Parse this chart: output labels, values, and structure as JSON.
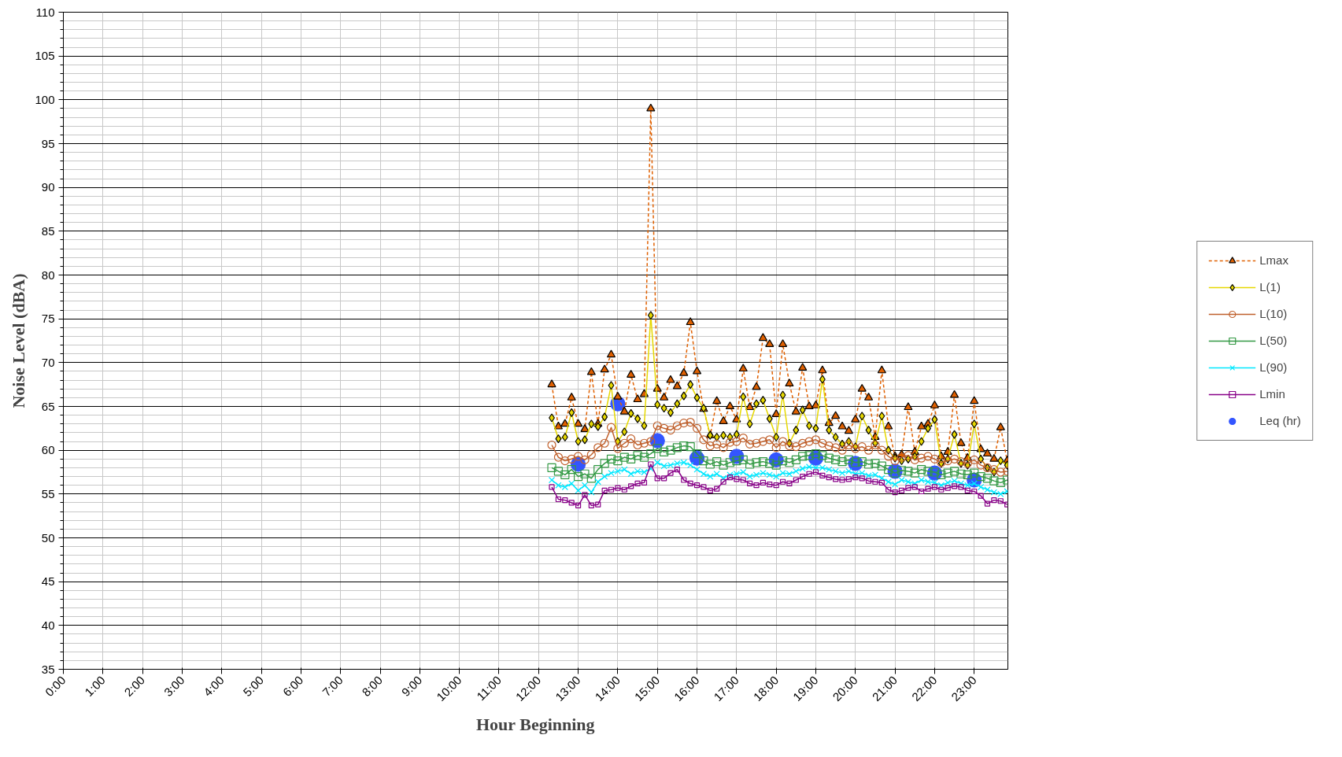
{
  "chart_data": {
    "type": "line",
    "xlabel": "Hour Beginning",
    "ylabel": "Noise Level (dBA)",
    "x": [
      12.333,
      12.5,
      12.667,
      12.833,
      13,
      13.167,
      13.333,
      13.5,
      13.667,
      13.833,
      14,
      14.167,
      14.333,
      14.5,
      14.667,
      14.833,
      15,
      15.167,
      15.333,
      15.5,
      15.667,
      15.833,
      16,
      16.167,
      16.333,
      16.5,
      16.667,
      16.833,
      17,
      17.167,
      17.333,
      17.5,
      17.667,
      17.833,
      18,
      18.167,
      18.333,
      18.5,
      18.667,
      18.833,
      19,
      19.167,
      19.333,
      19.5,
      19.667,
      19.833,
      20,
      20.167,
      20.333,
      20.5,
      20.667,
      20.833,
      21,
      21.167,
      21.333,
      21.5,
      21.667,
      21.833,
      22,
      22.167,
      22.333,
      22.5,
      22.667,
      22.833,
      23,
      23.167,
      23.333,
      23.5,
      23.667,
      23.833
    ],
    "series": [
      {
        "name": "Lmax",
        "color": "#e06000",
        "marker": "triangle",
        "line_style": "dashed",
        "values": [
          67.5,
          62.7,
          63.0,
          66.0,
          63.0,
          62.4,
          68.9,
          63.0,
          69.2,
          70.9,
          66.1,
          64.4,
          68.6,
          65.8,
          66.4,
          99.0,
          67.0,
          66.0,
          68.0,
          67.3,
          68.8,
          74.6,
          69.0,
          64.7,
          61.7,
          65.6,
          63.3,
          65.0,
          63.5,
          69.3,
          64.9,
          67.2,
          72.8,
          72.1,
          64.1,
          72.1,
          67.6,
          64.4,
          69.4,
          65.0,
          65.1,
          69.1,
          63.1,
          63.9,
          62.7,
          62.2,
          63.5,
          67.0,
          66.0,
          61.5,
          69.1,
          62.7,
          59.3,
          59.5,
          64.9,
          59.8,
          62.7,
          63.0,
          65.1,
          59.3,
          59.8,
          66.3,
          60.8,
          59.1,
          65.6,
          60.1,
          59.6,
          59.0,
          62.6,
          58.8
        ]
      },
      {
        "name": "L(1)",
        "color": "#e6d800",
        "marker": "diamond",
        "line_style": "solid",
        "values": [
          63.7,
          61.3,
          61.5,
          64.3,
          61.0,
          61.2,
          63.0,
          62.7,
          63.8,
          67.4,
          61.0,
          62.1,
          64.2,
          63.6,
          62.8,
          75.4,
          65.2,
          64.8,
          64.3,
          65.3,
          66.2,
          67.5,
          66.0,
          64.8,
          61.7,
          61.5,
          61.7,
          61.5,
          61.8,
          66.1,
          63.0,
          65.3,
          65.7,
          63.6,
          61.5,
          66.3,
          60.8,
          62.3,
          64.6,
          62.8,
          62.5,
          68.1,
          62.3,
          61.5,
          60.7,
          61.0,
          60.4,
          63.9,
          62.3,
          60.8,
          63.9,
          60.0,
          59.1,
          58.8,
          59.0,
          59.3,
          61.0,
          62.5,
          63.5,
          58.5,
          59.0,
          61.8,
          58.5,
          58.3,
          63.0,
          59.0,
          58.0,
          57.5,
          58.8,
          58.3
        ]
      },
      {
        "name": "L(10)",
        "color": "#c0602c",
        "marker": "circle",
        "line_style": "solid",
        "values": [
          60.6,
          59.2,
          58.8,
          59.0,
          59.3,
          58.9,
          59.5,
          60.3,
          60.8,
          62.6,
          60.2,
          60.8,
          61.3,
          60.6,
          60.8,
          61.0,
          62.8,
          62.5,
          62.3,
          62.8,
          63.1,
          63.2,
          62.5,
          61.2,
          60.5,
          60.7,
          60.3,
          60.9,
          61.0,
          61.4,
          60.7,
          60.8,
          61.0,
          61.2,
          60.3,
          61.0,
          60.5,
          60.4,
          60.8,
          61.0,
          61.2,
          60.8,
          60.5,
          60.3,
          60.0,
          60.6,
          60.2,
          60.4,
          60.0,
          60.6,
          60.0,
          59.3,
          58.8,
          59.2,
          59.4,
          58.9,
          59.1,
          59.3,
          59.0,
          58.6,
          58.8,
          59.0,
          58.7,
          58.5,
          58.9,
          58.3,
          58.0,
          57.8,
          57.5,
          57.6
        ]
      },
      {
        "name": "L(50)",
        "color": "#339944",
        "marker": "square",
        "line_style": "solid",
        "values": [
          58.0,
          57.6,
          57.2,
          57.8,
          57.0,
          57.3,
          56.8,
          57.8,
          58.5,
          59.0,
          58.8,
          59.2,
          59.0,
          59.4,
          59.2,
          59.6,
          60.2,
          59.8,
          60.0,
          60.3,
          60.5,
          60.4,
          59.6,
          58.8,
          58.4,
          58.7,
          58.3,
          58.6,
          58.8,
          58.9,
          58.4,
          58.6,
          58.7,
          58.5,
          58.3,
          58.8,
          58.6,
          58.9,
          59.3,
          59.4,
          59.6,
          59.4,
          59.1,
          58.9,
          58.7,
          58.9,
          58.6,
          58.7,
          58.4,
          58.5,
          58.2,
          57.8,
          57.4,
          57.7,
          57.6,
          57.4,
          57.8,
          57.6,
          57.5,
          57.2,
          57.4,
          57.6,
          57.3,
          57.2,
          57.4,
          57.0,
          56.8,
          56.5,
          56.3,
          56.6
        ]
      },
      {
        "name": "L(90)",
        "color": "#00e8ff",
        "marker": "cross",
        "line_style": "solid",
        "values": [
          56.6,
          56.0,
          55.8,
          56.2,
          55.4,
          56.0,
          55.2,
          56.4,
          57.0,
          57.4,
          57.6,
          57.8,
          57.3,
          57.6,
          57.5,
          57.9,
          58.6,
          58.2,
          58.3,
          58.5,
          58.6,
          58.3,
          57.8,
          57.3,
          57.0,
          57.3,
          56.8,
          57.2,
          57.3,
          57.5,
          57.0,
          57.2,
          57.4,
          57.2,
          57.0,
          57.4,
          57.3,
          57.6,
          57.9,
          58.1,
          58.0,
          58.0,
          57.8,
          57.6,
          57.4,
          57.6,
          57.3,
          57.4,
          57.1,
          57.2,
          56.8,
          56.4,
          56.1,
          56.6,
          56.4,
          56.2,
          56.6,
          56.4,
          56.3,
          56.0,
          56.3,
          56.5,
          56.2,
          56.0,
          56.2,
          55.8,
          55.5,
          55.2,
          55.0,
          55.3
        ]
      },
      {
        "name": "Lmin",
        "color": "#880088",
        "marker": "square",
        "line_style": "solid",
        "values": [
          55.8,
          54.4,
          54.3,
          54.0,
          53.7,
          54.9,
          53.7,
          53.8,
          55.4,
          55.5,
          55.7,
          55.5,
          55.9,
          56.2,
          56.3,
          58.4,
          56.8,
          56.8,
          57.4,
          57.8,
          56.6,
          56.2,
          56.0,
          55.8,
          55.4,
          55.6,
          56.4,
          56.9,
          56.7,
          56.6,
          56.2,
          56.0,
          56.3,
          56.1,
          56.0,
          56.4,
          56.2,
          56.6,
          57.0,
          57.3,
          57.5,
          57.1,
          56.9,
          56.7,
          56.6,
          56.7,
          56.9,
          56.8,
          56.5,
          56.4,
          56.3,
          55.5,
          55.2,
          55.4,
          55.7,
          55.8,
          55.3,
          55.6,
          55.8,
          55.5,
          55.7,
          55.9,
          55.8,
          55.4,
          55.3,
          54.8,
          53.9,
          54.3,
          54.2,
          53.8
        ]
      },
      {
        "name": "Leq (hr)",
        "type": "scatter",
        "color": "#3355ff",
        "marker": "circle",
        "x": [
          13,
          14,
          15,
          16,
          17,
          18,
          19,
          20,
          21,
          22,
          23
        ],
        "values": [
          58.4,
          65.3,
          61.1,
          59.1,
          59.3,
          58.9,
          59.1,
          58.5,
          57.6,
          57.4,
          56.6
        ]
      }
    ],
    "xlim": [
      0,
      23.85
    ],
    "xticks": [
      {
        "value": 0,
        "label": "0:00"
      },
      {
        "value": 1,
        "label": "1:00"
      },
      {
        "value": 2,
        "label": "2:00"
      },
      {
        "value": 3,
        "label": "3:00"
      },
      {
        "value": 4,
        "label": "4:00"
      },
      {
        "value": 5,
        "label": "5:00"
      },
      {
        "value": 6,
        "label": "6:00"
      },
      {
        "value": 7,
        "label": "7:00"
      },
      {
        "value": 8,
        "label": "8:00"
      },
      {
        "value": 9,
        "label": "9:00"
      },
      {
        "value": 10,
        "label": "10:00"
      },
      {
        "value": 11,
        "label": "11:00"
      },
      {
        "value": 12,
        "label": "12:00"
      },
      {
        "value": 13,
        "label": "13:00"
      },
      {
        "value": 14,
        "label": "14:00"
      },
      {
        "value": 15,
        "label": "15:00"
      },
      {
        "value": 16,
        "label": "16:00"
      },
      {
        "value": 17,
        "label": "17:00"
      },
      {
        "value": 18,
        "label": "18:00"
      },
      {
        "value": 19,
        "label": "19:00"
      },
      {
        "value": 20,
        "label": "20:00"
      },
      {
        "value": 21,
        "label": "21:00"
      },
      {
        "value": 22,
        "label": "22:00"
      },
      {
        "value": 23,
        "label": "23:00"
      }
    ],
    "ylim": [
      35,
      110
    ],
    "yticks": [
      35,
      40,
      45,
      50,
      55,
      60,
      65,
      70,
      75,
      80,
      85,
      90,
      95,
      100,
      105,
      110
    ],
    "grid": true,
    "legend": "right"
  }
}
